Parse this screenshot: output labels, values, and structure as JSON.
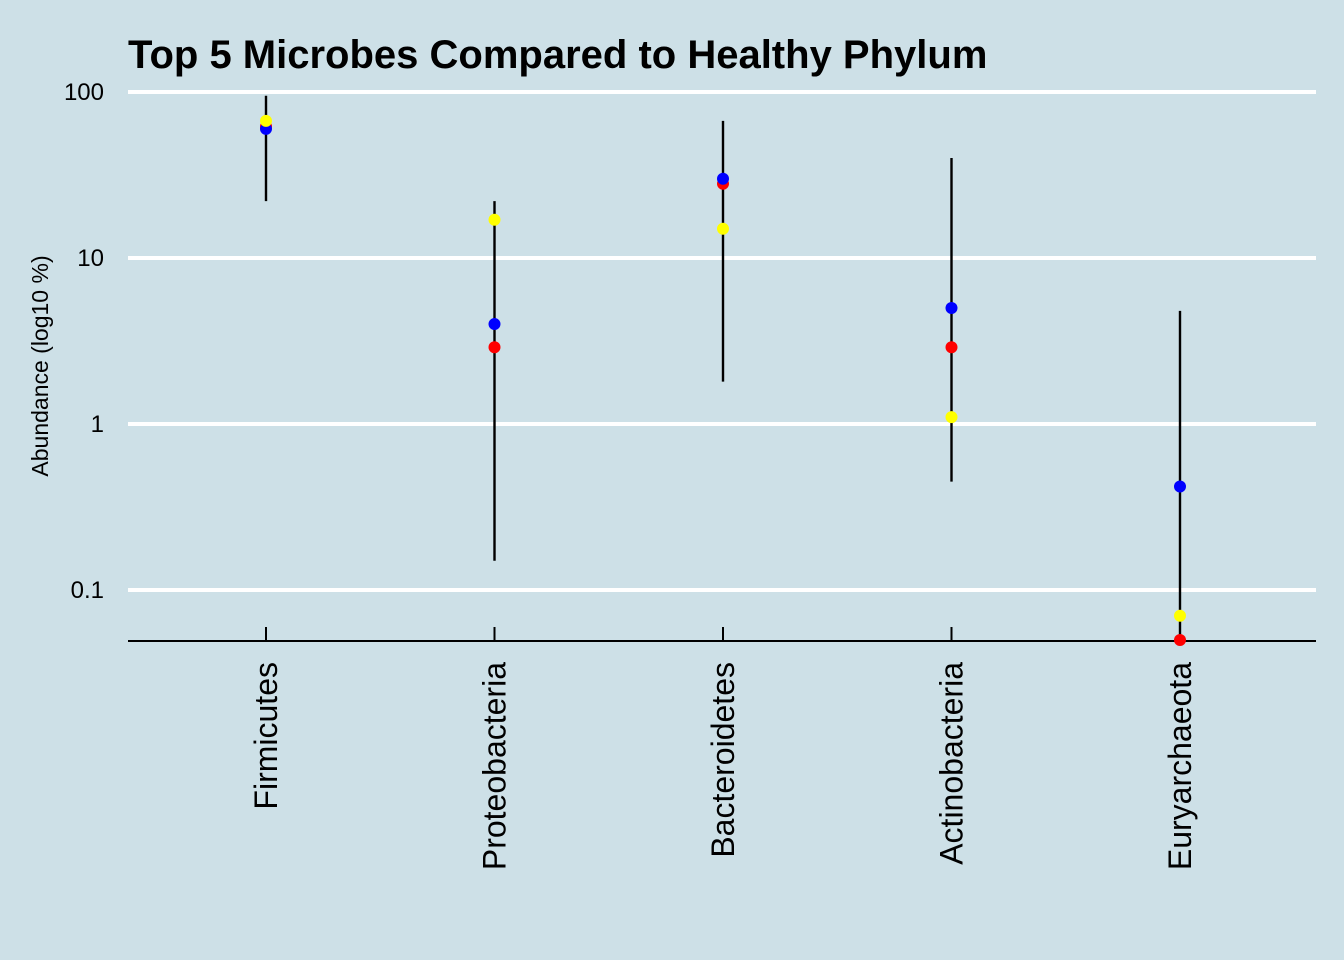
{
  "chart_data": {
    "type": "scatter",
    "title": "Top 5 Microbes Compared to Healthy Phylum",
    "ylabel": "Abundance (log10 %)",
    "xlabel": "",
    "y_scale": "log10",
    "ylim": [
      0.05,
      100
    ],
    "y_ticks": [
      {
        "value": 100,
        "label": "100"
      },
      {
        "value": 10,
        "label": "10"
      },
      {
        "value": 1,
        "label": "1"
      },
      {
        "value": 0.1,
        "label": "0.1"
      }
    ],
    "grid": "horizontal",
    "legend": "none",
    "categories": [
      "Firmicutes",
      "Proteobacteria",
      "Bacteroidetes",
      "Actinobacteria",
      "Euryarchaeota"
    ],
    "ranges": [
      {
        "low": 22,
        "high": 95
      },
      {
        "low": 0.15,
        "high": 22
      },
      {
        "low": 1.8,
        "high": 67
      },
      {
        "low": 0.45,
        "high": 40
      },
      {
        "low": 0.05,
        "high": 4.8
      }
    ],
    "series": [
      {
        "color": "#ff0000",
        "values": [
          62,
          2.9,
          28,
          2.9,
          0.05
        ]
      },
      {
        "color": "#0000ff",
        "values": [
          60,
          4.0,
          30,
          5.0,
          0.42
        ]
      },
      {
        "color": "#ffff00",
        "values": [
          67,
          17,
          15,
          1.1,
          0.07
        ]
      }
    ]
  }
}
